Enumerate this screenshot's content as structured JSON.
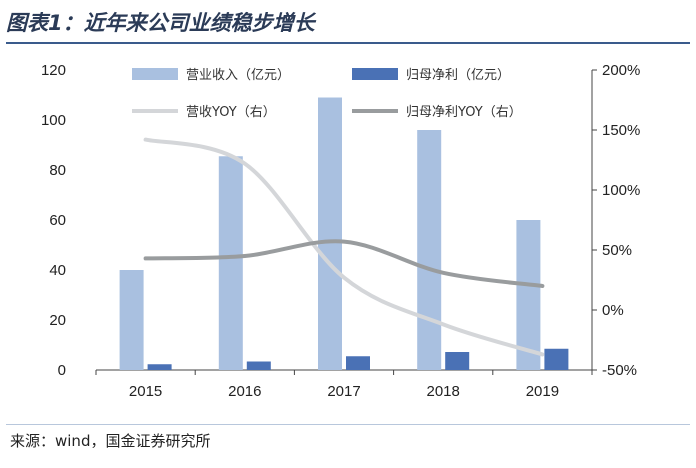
{
  "title": "图表1：近年来公司业绩稳步增长",
  "source": "来源：wind，国金证券研究所",
  "colors": {
    "revenue_bar": "#a9c0e0",
    "profit_bar": "#4a71b5",
    "revenue_yoy_line": "#d4d6d9",
    "profit_yoy_line": "#999c9e",
    "title": "#2b3b57",
    "rule": "#3a5b8c"
  },
  "chart_data": {
    "type": "bar",
    "categories": [
      "2015",
      "2016",
      "2017",
      "2018",
      "2019"
    ],
    "series": [
      {
        "name": "营业收入（亿元）",
        "type": "bar",
        "axis": "left",
        "values": [
          40,
          85.5,
          109,
          96,
          60
        ]
      },
      {
        "name": "归母净利（亿元）",
        "type": "bar",
        "axis": "left",
        "values": [
          2.3,
          3.4,
          5.5,
          7.2,
          8.5
        ]
      },
      {
        "name": "营收YOY（右）",
        "type": "line",
        "axis": "right",
        "values": [
          1.42,
          1.22,
          0.27,
          -0.12,
          -0.37
        ]
      },
      {
        "name": "归母净利YOY（右）",
        "type": "line",
        "axis": "right",
        "values": [
          0.43,
          0.45,
          0.57,
          0.31,
          0.2
        ]
      }
    ],
    "y_left": {
      "ticks": [
        "0",
        "20",
        "40",
        "60",
        "80",
        "100",
        "120"
      ],
      "min": 0,
      "max": 120
    },
    "y_right": {
      "ticks": [
        "-50%",
        "0%",
        "50%",
        "100%",
        "150%",
        "200%"
      ],
      "min": -0.5,
      "max": 2.0
    },
    "grid": false,
    "legend": "top"
  }
}
